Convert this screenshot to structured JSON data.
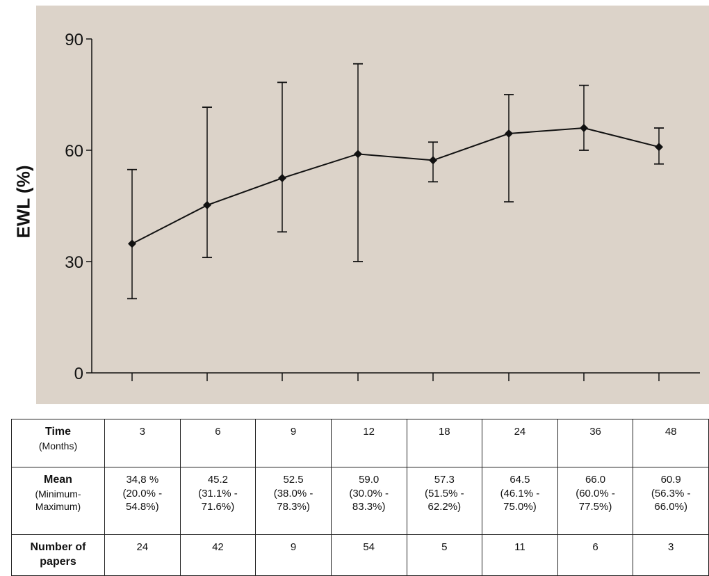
{
  "chart_data": {
    "type": "line",
    "ylabel": "EWL (%)",
    "xlabel": "",
    "ylim": [
      0,
      90
    ],
    "yticks": [
      0,
      30,
      60,
      90
    ],
    "x": [
      3,
      6,
      9,
      12,
      18,
      24,
      36,
      48
    ],
    "series": [
      {
        "values": [
          34.8,
          45.2,
          52.5,
          59.0,
          57.3,
          64.5,
          66.0,
          60.9
        ],
        "min": [
          20.0,
          31.1,
          38.0,
          30.0,
          51.5,
          46.1,
          60.0,
          56.3
        ],
        "max": [
          54.8,
          71.6,
          78.3,
          83.3,
          62.2,
          75.0,
          77.5,
          66.0
        ]
      }
    ],
    "grid": false,
    "colors": {
      "background": "#dcd3c9",
      "line": "#111111"
    }
  },
  "table": {
    "row_headers": [
      {
        "main": "Time",
        "sub": "(Months)"
      },
      {
        "main": "Mean",
        "sub": "(Minimum-\nMaximum)"
      },
      {
        "main": "Number of\npapers",
        "sub": ""
      }
    ],
    "time": [
      "3",
      "6",
      "9",
      "12",
      "18",
      "24",
      "36",
      "48"
    ],
    "mean": [
      "34,8 %",
      "45.2",
      "52.5",
      "59.0",
      "57.3",
      "64.5",
      "66.0",
      "60.9"
    ],
    "range": [
      "(20.0% -\n54.8%)",
      "(31.1% -\n71.6%)",
      "(38.0% -\n78.3%)",
      "(30.0% -\n83.3%)",
      "(51.5% -\n62.2%)",
      "(46.1% -\n75.0%)",
      "(60.0% -\n77.5%)",
      "(56.3% -\n66.0%)"
    ],
    "papers": [
      "24",
      "42",
      "9",
      "54",
      "5",
      "11",
      "6",
      "3"
    ]
  }
}
